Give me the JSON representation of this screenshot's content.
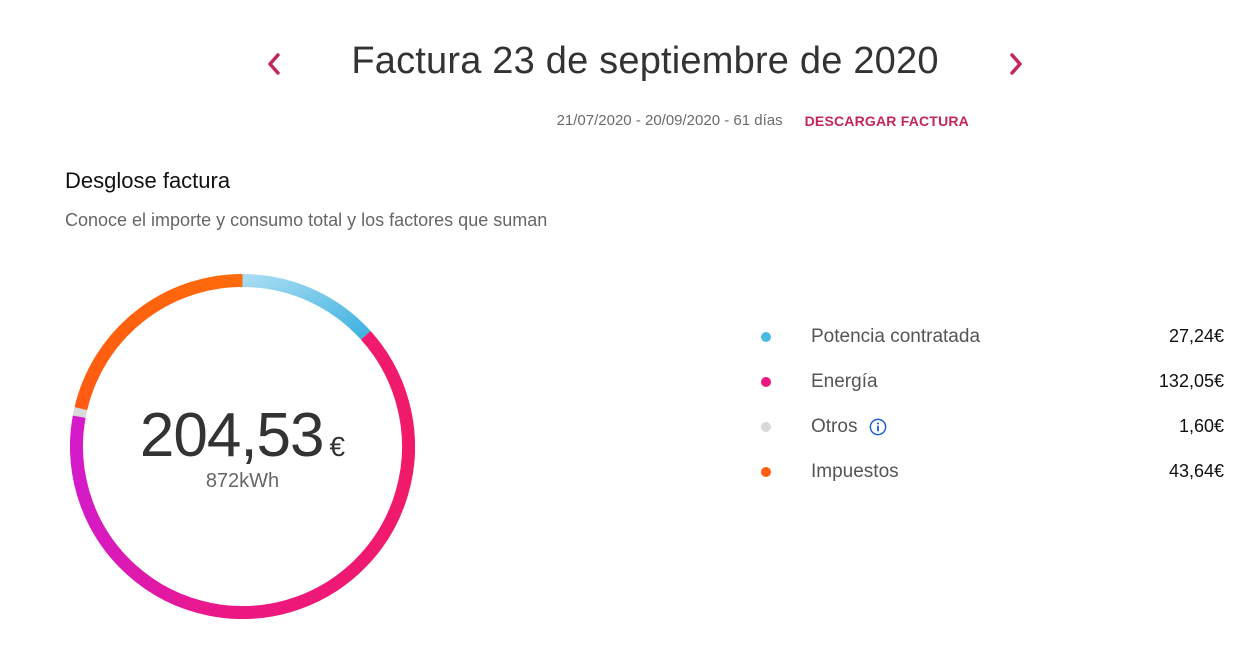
{
  "header": {
    "title": "Factura 23 de septiembre de 2020",
    "period": "21/07/2020 - 20/09/2020 - 61 días",
    "download_label": "DESCARGAR FACTURA",
    "prev_icon": "chevron-left-icon",
    "next_icon": "chevron-right-icon",
    "accent_color": "#c4265a"
  },
  "section": {
    "title": "Desglose factura",
    "subtitle": "Conoce el importe y consumo total y los factores que suman"
  },
  "summary": {
    "total_amount": "204,53",
    "currency": "€",
    "consumption": "872kWh"
  },
  "chart_data": {
    "type": "pie",
    "style": "donut",
    "categories": [
      "Potencia contratada",
      "Energía",
      "Otros",
      "Impuestos"
    ],
    "values": [
      27.24,
      132.05,
      1.6,
      43.64
    ],
    "colors": [
      "#4cb8e4",
      "#ec1780",
      "#d9d9d9",
      "#ff5f0f"
    ]
  },
  "legend": [
    {
      "label": "Potencia contratada",
      "value": "27,24€",
      "color": "#4cb8e4"
    },
    {
      "label": "Energía",
      "value": "132,05€",
      "color": "#ec1780"
    },
    {
      "label": "Otros",
      "value": "1,60€",
      "color": "#d9d9d9",
      "icon": "info-icon"
    },
    {
      "label": "Impuestos",
      "value": "43,64€",
      "color": "#ff5f0f"
    }
  ]
}
